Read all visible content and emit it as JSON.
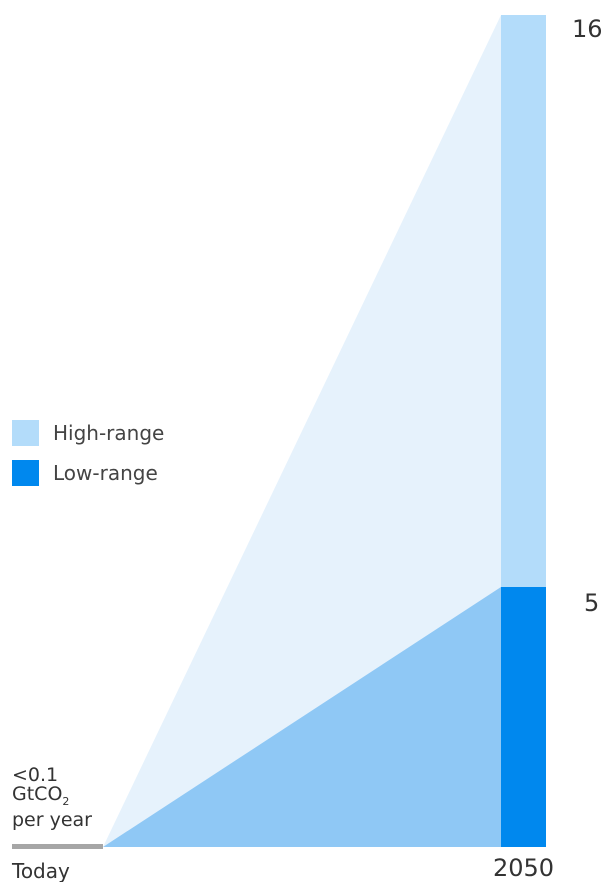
{
  "chart_data": {
    "type": "area",
    "x": [
      "Today",
      "2050"
    ],
    "series": [
      {
        "name": "High-range",
        "values": [
          0.1,
          16
        ],
        "color": "#b3dcfa",
        "area_color": "#e6f2fc"
      },
      {
        "name": "Low-range",
        "values": [
          0.1,
          5
        ],
        "color": "#0088ee",
        "area_color": "#8fc8f5"
      }
    ],
    "baseline_color": "#a6a6a6",
    "value_labels": [
      "16",
      "5"
    ],
    "baseline_label": {
      "line1": "<0.1",
      "line2_prefix": "GtCO",
      "line2_sub": "2",
      "line3": "per year"
    },
    "ylim": [
      0,
      16
    ]
  }
}
